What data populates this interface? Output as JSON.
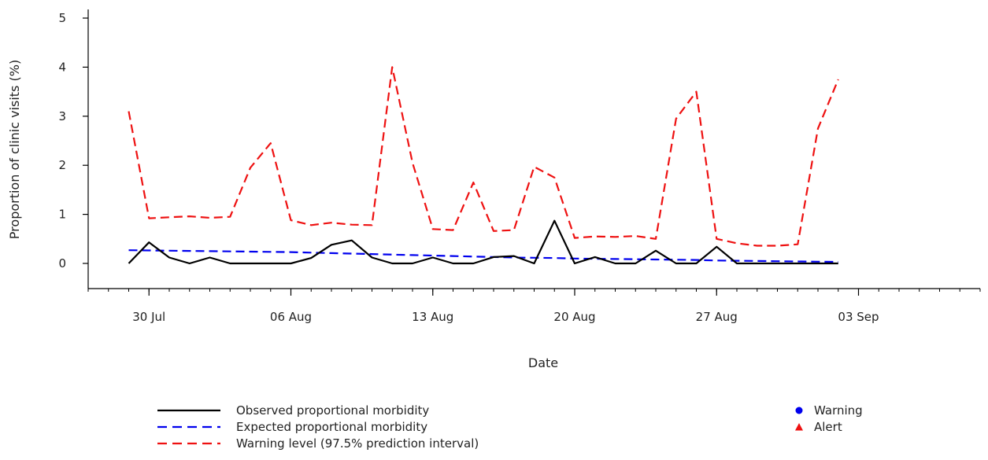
{
  "chart_data": {
    "type": "line",
    "title": "",
    "xlabel": "Date",
    "ylabel": "Proportion of clinic visits (%)",
    "ylim": [
      0,
      5
    ],
    "yticks": [
      0,
      1,
      2,
      3,
      4,
      5
    ],
    "xlim": [
      "2023-07-27",
      "2023-09-09"
    ],
    "xticks": [
      {
        "date": "2023-07-30",
        "label": "30 Jul"
      },
      {
        "date": "2023-08-06",
        "label": "06 Aug"
      },
      {
        "date": "2023-08-13",
        "label": "13 Aug"
      },
      {
        "date": "2023-08-20",
        "label": "20 Aug"
      },
      {
        "date": "2023-08-27",
        "label": "27 Aug"
      },
      {
        "date": "2023-09-03",
        "label": "03 Sep"
      }
    ],
    "grid": false,
    "legend_position": "bottom",
    "x": [
      "2023-07-29",
      "2023-07-30",
      "2023-07-31",
      "2023-08-01",
      "2023-08-02",
      "2023-08-03",
      "2023-08-04",
      "2023-08-05",
      "2023-08-06",
      "2023-08-07",
      "2023-08-08",
      "2023-08-09",
      "2023-08-10",
      "2023-08-11",
      "2023-08-12",
      "2023-08-13",
      "2023-08-14",
      "2023-08-15",
      "2023-08-16",
      "2023-08-17",
      "2023-08-18",
      "2023-08-19",
      "2023-08-20",
      "2023-08-21",
      "2023-08-22",
      "2023-08-23",
      "2023-08-24",
      "2023-08-25",
      "2023-08-26",
      "2023-08-27",
      "2023-08-28",
      "2023-08-29",
      "2023-08-30",
      "2023-08-31",
      "2023-09-01",
      "2023-09-02"
    ],
    "series": [
      {
        "name": "Observed proportional morbidity",
        "color": "#000000",
        "style": "solid",
        "values": [
          0.0,
          0.43,
          0.12,
          0.0,
          0.12,
          0.0,
          0.0,
          0.0,
          0.0,
          0.11,
          0.38,
          0.47,
          0.12,
          0.0,
          0.0,
          0.12,
          0.0,
          0.0,
          0.13,
          0.15,
          0.0,
          0.87,
          0.0,
          0.13,
          0.0,
          0.0,
          0.26,
          0.0,
          0.0,
          0.34,
          0.0,
          0.0,
          0.0,
          0.0,
          0.0,
          0.0
        ]
      },
      {
        "name": "Expected proportional morbidity",
        "color": "#0000ee",
        "style": "dashed",
        "values": [
          0.27,
          0.265,
          0.26,
          0.255,
          0.25,
          0.245,
          0.24,
          0.235,
          0.23,
          0.22,
          0.21,
          0.2,
          0.19,
          0.18,
          0.17,
          0.16,
          0.15,
          0.14,
          0.13,
          0.12,
          0.115,
          0.11,
          0.1,
          0.095,
          0.09,
          0.085,
          0.08,
          0.075,
          0.07,
          0.06,
          0.055,
          0.05,
          0.045,
          0.04,
          0.035,
          0.03
        ]
      },
      {
        "name": "Warning level (97.5% prediction interval)",
        "color": "#ee1111",
        "style": "dashed",
        "values": [
          3.1,
          0.92,
          0.94,
          0.96,
          0.93,
          0.95,
          1.95,
          2.45,
          0.88,
          0.78,
          0.83,
          0.79,
          0.78,
          4.0,
          2.05,
          0.7,
          0.68,
          1.65,
          0.66,
          0.68,
          1.97,
          1.75,
          0.52,
          0.55,
          0.54,
          0.56,
          0.5,
          2.95,
          3.5,
          0.5,
          0.41,
          0.36,
          0.36,
          0.39,
          2.75,
          3.75
        ]
      }
    ],
    "markers": [
      {
        "name": "Warning",
        "color": "#0000ee",
        "shape": "circle"
      },
      {
        "name": "Alert",
        "color": "#ee1111",
        "shape": "triangle"
      }
    ]
  }
}
